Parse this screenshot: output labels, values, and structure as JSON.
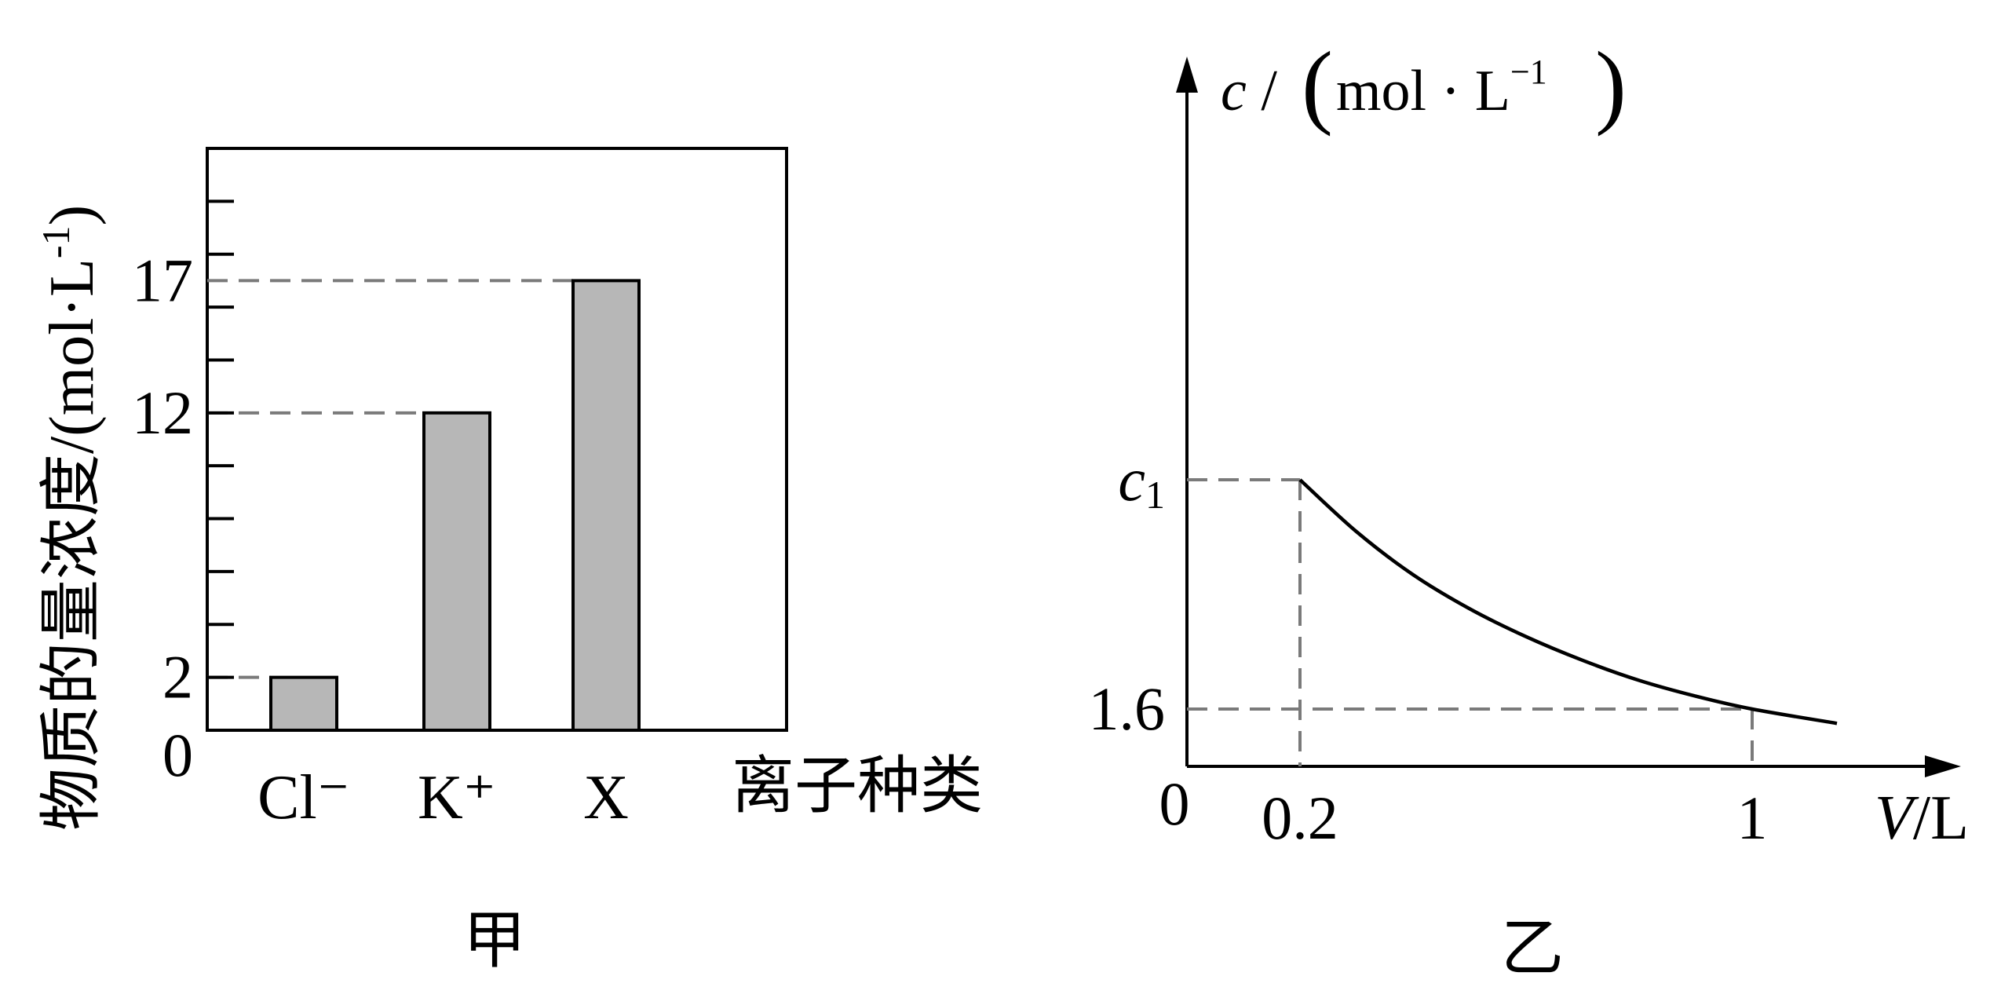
{
  "colors": {
    "bar_fill": "#b7b7b7",
    "axis": "#000000",
    "dash": "#7a7a7a",
    "curve": "#000000"
  },
  "chart_data": [
    {
      "type": "bar",
      "categories": [
        "Cl⁻",
        "K⁺",
        "X"
      ],
      "values": [
        2,
        12,
        17
      ],
      "ylim": [
        0,
        22
      ],
      "yticks": [
        0,
        2,
        4,
        6,
        8,
        10,
        12,
        14,
        16,
        18,
        20
      ],
      "yticklabels": [
        {
          "value": 0,
          "text": "0"
        },
        {
          "value": 2,
          "text": "2"
        },
        {
          "value": 12,
          "text": "12"
        },
        {
          "value": 17,
          "text": "17"
        }
      ],
      "dashed_refs": [
        2,
        12,
        17
      ],
      "ylabel": "物质的量浓度/(mol·L",
      "ylabel_sup": "-1",
      "ylabel_close": ")",
      "xlabel": "离子种类",
      "caption": "甲"
    },
    {
      "type": "line",
      "x": [
        0.2,
        0.3,
        0.4,
        0.5,
        0.6,
        0.7,
        0.8,
        0.9,
        1.0,
        1.15
      ],
      "y": [
        8.0,
        6.55,
        5.35,
        4.4,
        3.62,
        2.96,
        2.4,
        1.96,
        1.6,
        1.2
      ],
      "xlim": [
        0,
        1.35
      ],
      "ylim": [
        0,
        9.5
      ],
      "xticklabels": [
        {
          "value": 0,
          "text": "0"
        },
        {
          "value": 0.2,
          "text": "0.2"
        },
        {
          "value": 1,
          "text": "1"
        }
      ],
      "yticklabels": [
        {
          "value": 1.6,
          "text": "1.6"
        },
        {
          "value": 8.0,
          "text": "c",
          "sub": "1"
        }
      ],
      "dashed_points": [
        [
          0.2,
          8.0
        ],
        [
          1.0,
          1.6
        ]
      ],
      "ylabel": {
        "var": "c",
        "sep": " / ",
        "unit": "mol · L",
        "sup": "−1"
      },
      "xlabel": {
        "var": "V",
        "unit": "/L"
      },
      "caption": "乙"
    }
  ]
}
